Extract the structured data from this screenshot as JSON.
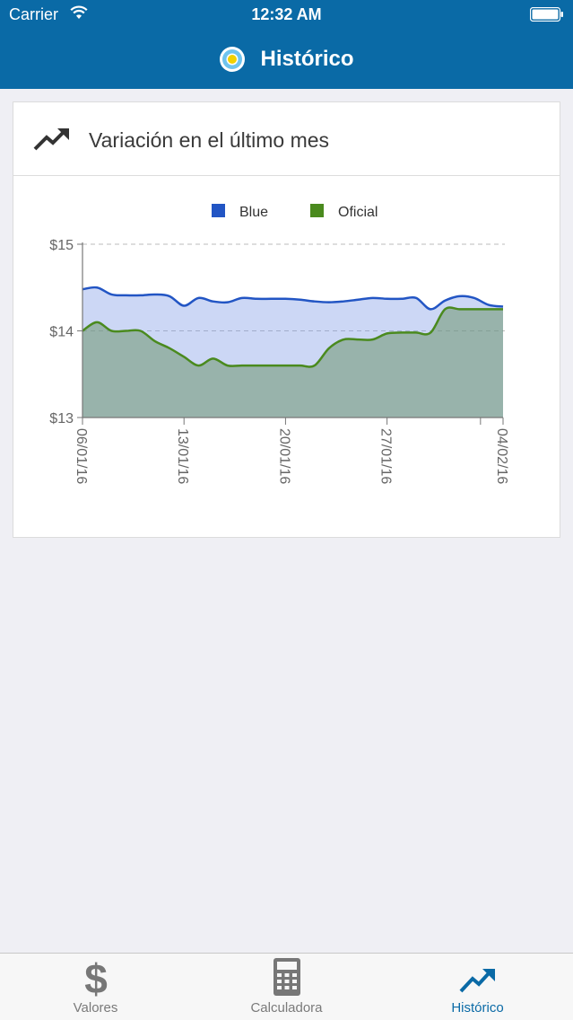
{
  "status_bar": {
    "carrier": "Carrier",
    "time": "12:32 AM"
  },
  "nav": {
    "title": "Histórico"
  },
  "card": {
    "title": "Variación en el último mes"
  },
  "tabs": [
    {
      "label": "Valores",
      "icon": "dollar-icon",
      "active": false
    },
    {
      "label": "Calculadora",
      "icon": "calculator-icon",
      "active": false
    },
    {
      "label": "Histórico",
      "icon": "trend-icon",
      "active": true
    }
  ],
  "colors": {
    "header": "#0a6aa6",
    "blue_series": "#2255c4",
    "oficial_series": "#4a8a1e"
  },
  "chart_data": {
    "type": "area",
    "title": "",
    "xlabel": "",
    "ylabel": "",
    "ylim": [
      13,
      15
    ],
    "yticks": [
      "$13",
      "$14",
      "$15"
    ],
    "xticks": [
      "06/01/16",
      "13/01/16",
      "20/01/16",
      "27/01/16",
      "04/02/16"
    ],
    "legend": "top",
    "grid": true,
    "series": [
      {
        "name": "Blue",
        "x": [
          "06/01/16",
          "07/01/16",
          "08/01/16",
          "09/01/16",
          "10/01/16",
          "11/01/16",
          "12/01/16",
          "13/01/16",
          "14/01/16",
          "15/01/16",
          "16/01/16",
          "17/01/16",
          "18/01/16",
          "19/01/16",
          "20/01/16",
          "21/01/16",
          "22/01/16",
          "23/01/16",
          "24/01/16",
          "25/01/16",
          "26/01/16",
          "27/01/16",
          "28/01/16",
          "29/01/16",
          "30/01/16",
          "31/01/16",
          "01/02/16",
          "02/02/16",
          "03/02/16",
          "04/02/16"
        ],
        "values": [
          14.48,
          14.5,
          14.42,
          14.41,
          14.41,
          14.42,
          14.4,
          14.29,
          14.38,
          14.34,
          14.33,
          14.38,
          14.37,
          14.37,
          14.37,
          14.36,
          14.34,
          14.33,
          14.34,
          14.36,
          14.38,
          14.37,
          14.37,
          14.38,
          14.25,
          14.35,
          14.4,
          14.38,
          14.3,
          14.28
        ]
      },
      {
        "name": "Oficial",
        "x": [
          "06/01/16",
          "07/01/16",
          "08/01/16",
          "09/01/16",
          "10/01/16",
          "11/01/16",
          "12/01/16",
          "13/01/16",
          "14/01/16",
          "15/01/16",
          "16/01/16",
          "17/01/16",
          "18/01/16",
          "19/01/16",
          "20/01/16",
          "21/01/16",
          "22/01/16",
          "23/01/16",
          "24/01/16",
          "25/01/16",
          "26/01/16",
          "27/01/16",
          "28/01/16",
          "29/01/16",
          "30/01/16",
          "31/01/16",
          "01/02/16",
          "02/02/16",
          "03/02/16",
          "04/02/16"
        ],
        "values": [
          14.0,
          14.1,
          14.0,
          14.0,
          14.0,
          13.88,
          13.8,
          13.7,
          13.6,
          13.68,
          13.6,
          13.6,
          13.6,
          13.6,
          13.6,
          13.6,
          13.6,
          13.8,
          13.9,
          13.9,
          13.9,
          13.97,
          13.98,
          13.98,
          13.98,
          14.25,
          14.25,
          14.25,
          14.25,
          14.25
        ]
      }
    ]
  }
}
